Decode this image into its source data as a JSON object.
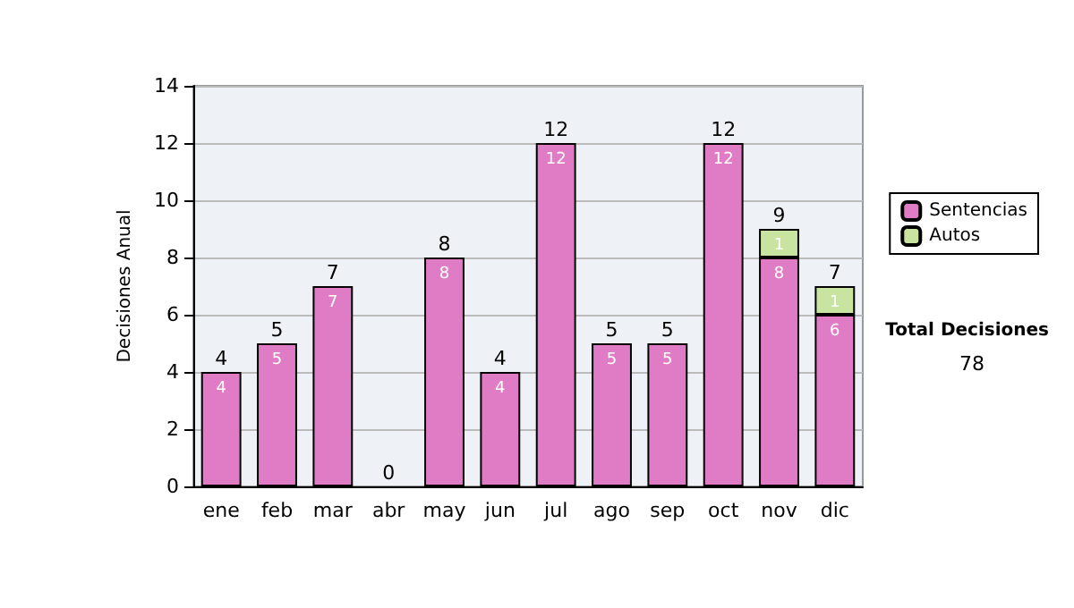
{
  "chart_data": {
    "type": "bar",
    "ylabel": "Decisiones Anual",
    "categories": [
      "ene",
      "feb",
      "mar",
      "abr",
      "may",
      "jun",
      "jul",
      "ago",
      "sep",
      "oct",
      "nov",
      "dic"
    ],
    "stacked": true,
    "series": [
      {
        "name": "Sentencias",
        "color": "#e07cc6",
        "values": [
          4,
          5,
          7,
          0,
          8,
          4,
          12,
          5,
          5,
          12,
          8,
          6
        ],
        "value_labels": [
          "4",
          "5",
          "7",
          null,
          "8",
          "4",
          "12",
          "5",
          "5",
          "12",
          "8",
          "6"
        ]
      },
      {
        "name": "Autos",
        "color": "#c8e4a0",
        "values": [
          0,
          0,
          0,
          0,
          0,
          0,
          0,
          0,
          0,
          0,
          1,
          1
        ],
        "value_labels": [
          null,
          null,
          null,
          null,
          null,
          null,
          null,
          null,
          null,
          null,
          "1",
          "1"
        ]
      }
    ],
    "totals": [
      "4",
      "5",
      "7",
      "0",
      "8",
      "4",
      "12",
      "5",
      "5",
      "12",
      "9",
      "7"
    ],
    "ylim": [
      0,
      14
    ],
    "yticks": [
      0,
      2,
      4,
      6,
      8,
      10,
      12,
      14
    ],
    "grid": "y",
    "legend": "right",
    "annotations": [
      "Total Decisiones",
      "78"
    ]
  }
}
